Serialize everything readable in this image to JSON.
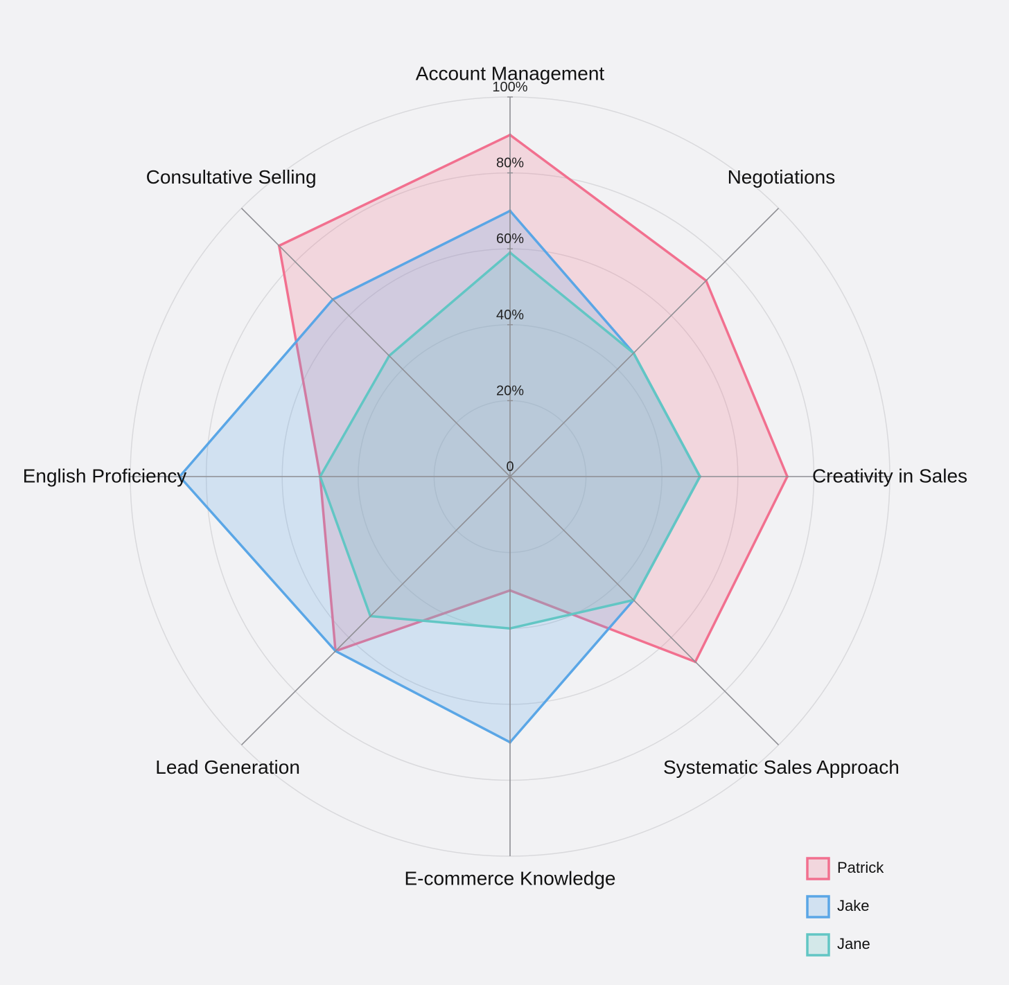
{
  "chart_data": {
    "type": "radar",
    "categories": [
      "Account Management",
      "Negotiations",
      "Creativity in Sales",
      "Systematic Sales Approach",
      "E-commerce Knowledge",
      "Lead Generation",
      "English Proficiency",
      "Consultative Selling"
    ],
    "rlim": [
      0,
      100
    ],
    "rticks": [
      0,
      20,
      40,
      60,
      80,
      100
    ],
    "rtick_labels": [
      "0",
      "20%",
      "40%",
      "60%",
      "80%",
      "100%"
    ],
    "grid": true,
    "legend_position": "bottom-right",
    "series": [
      {
        "name": "Patrick",
        "color": "#f2708f",
        "values": [
          90,
          73,
          73,
          69,
          30,
          65,
          50,
          86
        ]
      },
      {
        "name": "Jake",
        "color": "#5aa6e6",
        "values": [
          70,
          46,
          50,
          46,
          70,
          65,
          87,
          66
        ]
      },
      {
        "name": "Jane",
        "color": "#62c6c4",
        "values": [
          59,
          46,
          50,
          46,
          40,
          52,
          50,
          45
        ]
      }
    ]
  }
}
